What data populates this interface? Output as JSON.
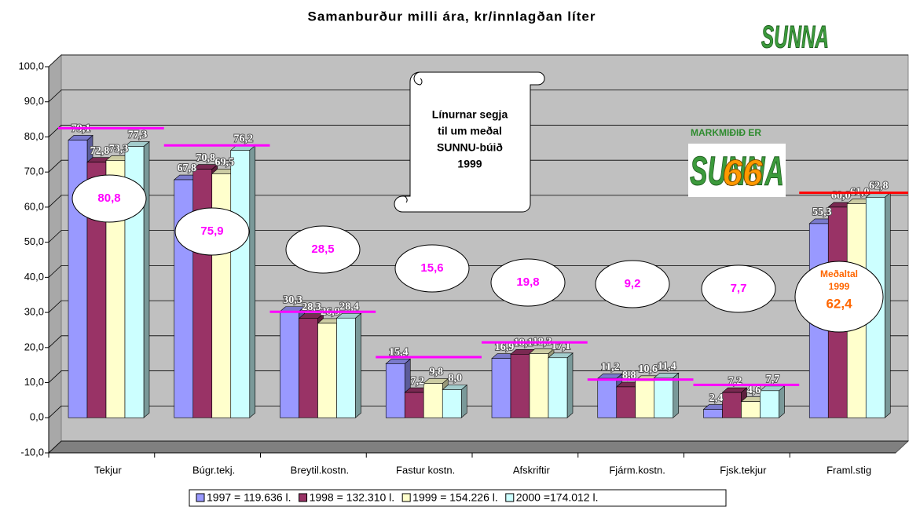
{
  "chart_data": {
    "type": "bar",
    "title": "Samanburður milli ára, kr/innlagðan líter",
    "categories": [
      "Tekjur",
      "Búgr.tekj.",
      "Breytil.kostn.",
      "Fastur kostn.",
      "Afskriftir",
      "Fjárm.kostn.",
      "Fjsk.tekjur",
      "Framl.stig"
    ],
    "series": [
      {
        "name": "1997 = 119.636 l.",
        "color": "#9999ff",
        "values": [
          79.1,
          67.8,
          30.3,
          15.4,
          16.9,
          11.2,
          2.4,
          55.3
        ],
        "value_labels": [
          "79,1",
          "67,8",
          "30,3",
          "15,4",
          "16,9",
          "11,2",
          "2,4",
          "55,3"
        ]
      },
      {
        "name": "1998 = 132.310 l.",
        "color": "#993366",
        "values": [
          72.8,
          70.8,
          28.3,
          7.2,
          18.1,
          8.8,
          7.2,
          60.0
        ],
        "value_labels": [
          "72,8",
          "70,8",
          "28,3",
          "7,2",
          "18,1",
          "8,8",
          "7,2",
          "60,0"
        ]
      },
      {
        "name": "1999 = 154.226 l.",
        "color": "#ffffcc",
        "values": [
          73.3,
          69.5,
          26.9,
          9.8,
          18.3,
          10.6,
          4.6,
          61.0
        ],
        "value_labels": [
          "73,3",
          "69,5",
          "26,9",
          "9,8",
          "18,3",
          "10,6",
          "4,6",
          "61,0"
        ]
      },
      {
        "name": "2000 =174.012 l.",
        "color": "#ccffff",
        "values": [
          77.3,
          76.2,
          28.4,
          8.0,
          17.1,
          11.4,
          7.7,
          62.8
        ],
        "value_labels": [
          "77,3",
          "76,2",
          "28,4",
          "8,0",
          "17,1",
          "11,4",
          "7,7",
          "62,8"
        ]
      }
    ],
    "reference_lines": {
      "values": [
        80.8,
        75.9,
        28.5,
        15.6,
        19.8,
        9.2,
        7.7,
        62.4
      ],
      "value_labels": [
        "80,8",
        "75,9",
        "28,5",
        "15,6",
        "19,8",
        "9,2",
        "7,7",
        "62,4"
      ],
      "colors": [
        "#ff00ff",
        "#ff00ff",
        "#ff00ff",
        "#ff00ff",
        "#ff00ff",
        "#ff00ff",
        "#ff00ff",
        "#ff0000"
      ]
    },
    "ylim": [
      -10,
      100
    ],
    "yticks": [
      {
        "value": -10,
        "label": "-10,0"
      },
      {
        "value": 0,
        "label": "0,0"
      },
      {
        "value": 10,
        "label": "10,0"
      },
      {
        "value": 20,
        "label": "20,0"
      },
      {
        "value": 30,
        "label": "30,0"
      },
      {
        "value": 40,
        "label": "40,0"
      },
      {
        "value": 50,
        "label": "50,0"
      },
      {
        "value": 60,
        "label": "60,0"
      },
      {
        "value": 70,
        "label": "70,0"
      },
      {
        "value": 80,
        "label": "80,0"
      },
      {
        "value": 90,
        "label": "90,0"
      },
      {
        "value": 100,
        "label": "100,0"
      }
    ],
    "grid": true,
    "annotations": {
      "callout": [
        "Línurnar segja",
        "til um meðal",
        "SUNNU-búið",
        "1999"
      ],
      "goal": "MARKMIÐIÐ ER",
      "logo": "SUNNA",
      "logo_number": "66",
      "average_label": "Meðaltal",
      "average_year": "1999"
    }
  }
}
